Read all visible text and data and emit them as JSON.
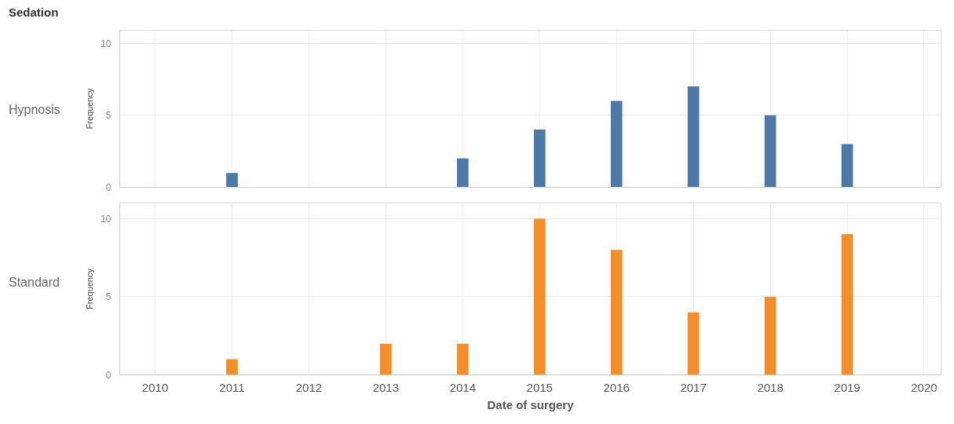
{
  "chart_data": [
    {
      "type": "bar",
      "title": "Sedation",
      "annotations": [
        "Hypnosis"
      ],
      "ylabel": "Frequency",
      "x": [
        2011,
        2014,
        2015,
        2016,
        2017,
        2018,
        2019
      ],
      "series": [
        {
          "color": "#4e79a7",
          "values": [
            1,
            2,
            4,
            6,
            7,
            5,
            3
          ]
        }
      ],
      "xlim": [
        2009.54,
        2020.22
      ],
      "xticks": [
        2010,
        2011,
        2012,
        2013,
        2014,
        2015,
        2016,
        2017,
        2018,
        2019,
        2020
      ],
      "ylim": [
        0,
        10.9
      ],
      "yticks": [
        0,
        5,
        10
      ],
      "grid": true,
      "tick_labels": "y"
    },
    {
      "type": "bar",
      "annotations": [
        "Standard"
      ],
      "ylabel": "Frequency",
      "xlabel": "Date of surgery",
      "x": [
        2011,
        2013,
        2014,
        2015,
        2016,
        2017,
        2018,
        2019
      ],
      "series": [
        {
          "color": "#f28e2b",
          "values": [
            1,
            2,
            2,
            10,
            8,
            4,
            5,
            9
          ]
        }
      ],
      "xlim": [
        2009.54,
        2020.22
      ],
      "xticks": [
        2010,
        2011,
        2012,
        2013,
        2014,
        2015,
        2016,
        2017,
        2018,
        2019,
        2020
      ],
      "ylim": [
        0,
        11
      ],
      "yticks": [
        0,
        5,
        10
      ],
      "grid": true
    }
  ]
}
